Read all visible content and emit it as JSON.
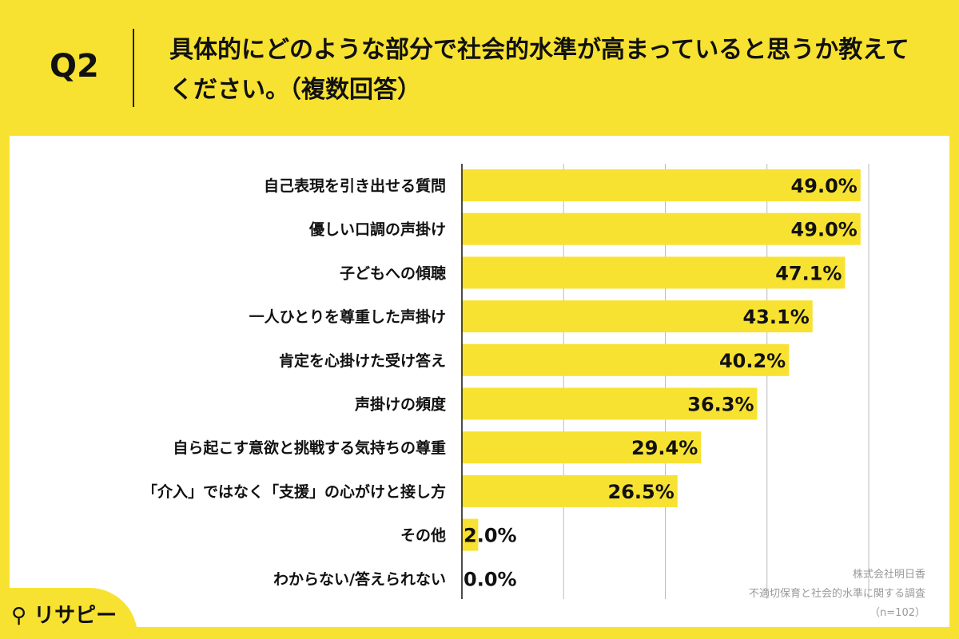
{
  "header": {
    "question_no": "Q2",
    "title": "具体的にどのような部分で社会的水準が高まっていると思うか教えてください。（複数回答）"
  },
  "chart_data": {
    "type": "bar",
    "orientation": "horizontal",
    "categories": [
      "自己表現を引き出せる質問",
      "優しい口調の声掛け",
      "子どもへの傾聴",
      "一人ひとりを尊重した声掛け",
      "肯定を心掛けた受け答え",
      "声掛けの頻度",
      "自ら起こす意欲と挑戦する気持ちの尊重",
      "「介入」ではなく「支援」の心がけと接し方",
      "その他",
      "わからない/答えられない"
    ],
    "values": [
      49.0,
      49.0,
      47.1,
      43.1,
      40.2,
      36.3,
      29.4,
      26.5,
      2.0,
      0.0
    ],
    "data_labels": [
      "49.0%",
      "49.0%",
      "47.1%",
      "43.1%",
      "40.2%",
      "36.3%",
      "29.4%",
      "26.5%",
      "2.0%",
      "0.0%"
    ],
    "xlim": [
      0,
      50
    ],
    "grid": true,
    "bar_color": "#F8E231"
  },
  "credit": {
    "line1": "株式会社明日香",
    "line2": "不適切保育と社会的水準に関する調査",
    "line3": "（n=102）"
  },
  "logo": {
    "text": "リサピー"
  },
  "colors": {
    "background": "#F8E231",
    "bar": "#F8E231"
  }
}
